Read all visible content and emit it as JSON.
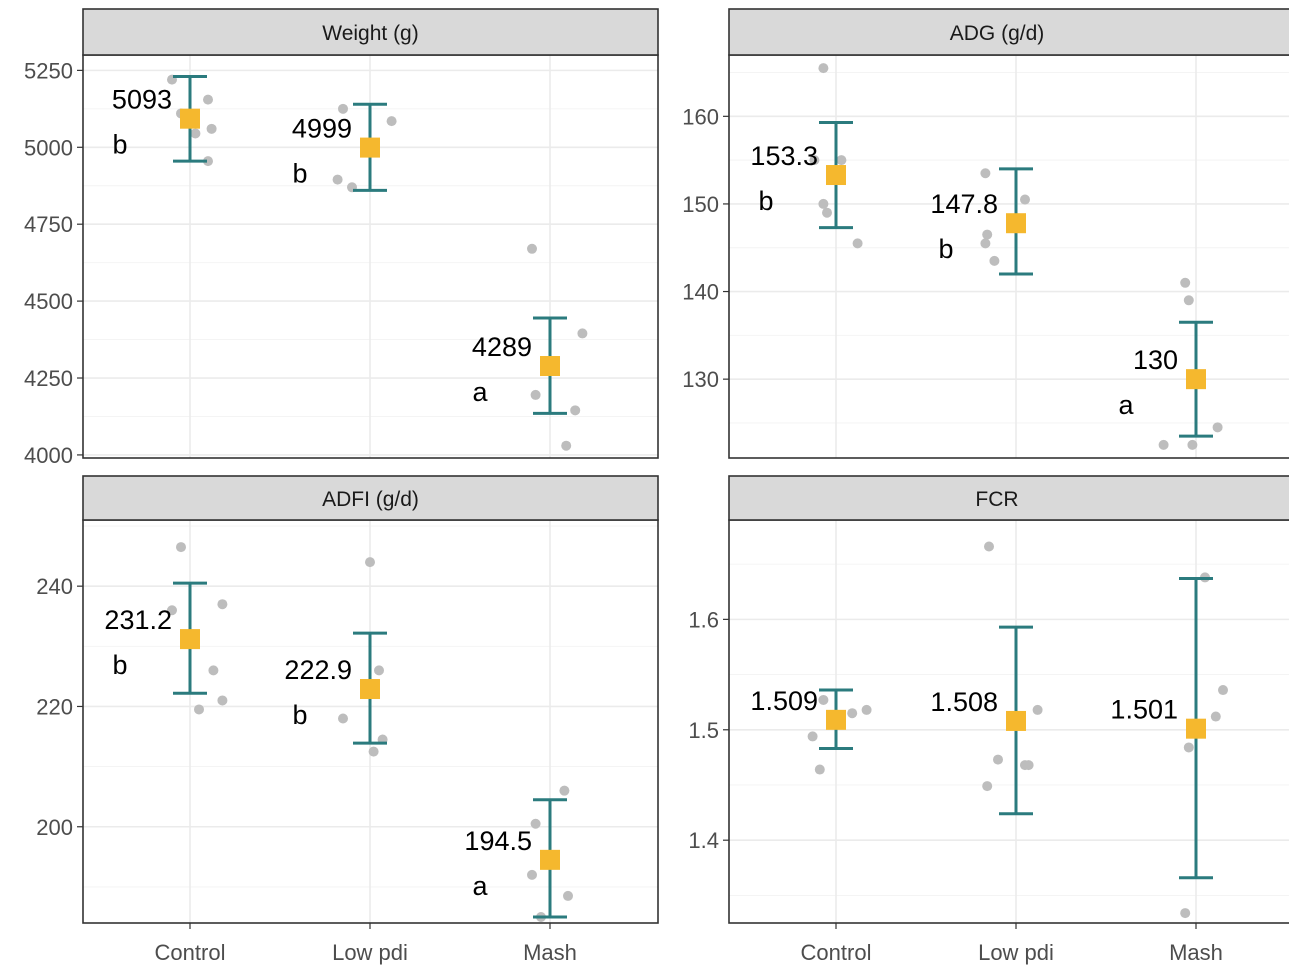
{
  "colors": {
    "mean_marker": "#f5b82e",
    "error_bar": "#2b7b7e",
    "raw_points": "#bdbdbd",
    "strip_fill": "#d9d9d9"
  },
  "x_categories": [
    "Control",
    "Low pdi",
    "Mash"
  ],
  "chart_data": [
    {
      "type": "scatter",
      "strip_title": "Weight (g)",
      "categories": [
        "Control",
        "Low pdi",
        "Mash"
      ],
      "ylim": [
        3990,
        5300
      ],
      "yticks": [
        4000,
        4250,
        4500,
        4750,
        5000,
        5250
      ],
      "ytick_labels": [
        "4000",
        "4250",
        "4500",
        "4750",
        "5000",
        "5250"
      ],
      "means": [
        5093,
        4999,
        4289
      ],
      "error_low": [
        4955,
        4860,
        4135
      ],
      "error_high": [
        5230,
        5140,
        4445
      ],
      "value_labels": [
        "5093",
        "4999",
        "4289"
      ],
      "letters": [
        "b",
        "b",
        "a"
      ],
      "points": [
        [
          [
            -0.1,
            5220
          ],
          [
            -0.05,
            5110
          ],
          [
            0.1,
            5155
          ],
          [
            0.12,
            5060
          ],
          [
            0.03,
            5045
          ],
          [
            0.1,
            4955
          ]
        ],
        [
          [
            -0.15,
            5125
          ],
          [
            0.12,
            5085
          ],
          [
            -0.18,
            4895
          ],
          [
            -0.1,
            4870
          ]
        ],
        [
          [
            -0.1,
            4670
          ],
          [
            0.18,
            4395
          ],
          [
            -0.08,
            4195
          ],
          [
            0.14,
            4145
          ],
          [
            0.09,
            4030
          ]
        ]
      ]
    },
    {
      "type": "scatter",
      "strip_title": "ADG (g/d)",
      "categories": [
        "Control",
        "Low pdi",
        "Mash"
      ],
      "ylim": [
        121,
        167
      ],
      "yticks": [
        130,
        140,
        150,
        160
      ],
      "ytick_labels": [
        "130",
        "140",
        "150",
        "160"
      ],
      "means": [
        153.3,
        147.8,
        130
      ],
      "error_low": [
        147.3,
        142.0,
        123.5
      ],
      "error_high": [
        159.3,
        154.0,
        136.5
      ],
      "value_labels": [
        "153.3",
        "147.8",
        "130"
      ],
      "letters": [
        "b",
        "b",
        "a"
      ],
      "points": [
        [
          [
            -0.07,
            165.5
          ],
          [
            -0.12,
            155
          ],
          [
            0.03,
            155
          ],
          [
            -0.07,
            150
          ],
          [
            -0.05,
            149
          ],
          [
            0.12,
            145.5
          ]
        ],
        [
          [
            -0.17,
            153.5
          ],
          [
            0.05,
            150.5
          ],
          [
            -0.16,
            146.5
          ],
          [
            -0.17,
            145.5
          ],
          [
            -0.12,
            143.5
          ]
        ],
        [
          [
            -0.06,
            141
          ],
          [
            -0.04,
            139
          ],
          [
            0.0,
            130
          ],
          [
            0.12,
            124.5
          ],
          [
            -0.18,
            122.5
          ],
          [
            -0.02,
            122.5
          ]
        ]
      ]
    },
    {
      "type": "scatter",
      "strip_title": "ADFI (g/d)",
      "categories": [
        "Control",
        "Low pdi",
        "Mash"
      ],
      "ylim": [
        184,
        251
      ],
      "yticks": [
        200,
        220,
        240
      ],
      "ytick_labels": [
        "200",
        "220",
        "240"
      ],
      "means": [
        231.2,
        222.9,
        194.5
      ],
      "error_low": [
        222.2,
        213.9,
        185.0
      ],
      "error_high": [
        240.5,
        232.2,
        204.5
      ],
      "value_labels": [
        "231.2",
        "222.9",
        "194.5"
      ],
      "letters": [
        "b",
        "b",
        "a"
      ],
      "points": [
        [
          [
            -0.05,
            246.5
          ],
          [
            0.18,
            237
          ],
          [
            -0.1,
            236
          ],
          [
            0.13,
            226
          ],
          [
            0.18,
            221
          ],
          [
            0.05,
            219.5
          ]
        ],
        [
          [
            0.0,
            244
          ],
          [
            0.05,
            226
          ],
          [
            -0.15,
            218
          ],
          [
            0.07,
            214.5
          ],
          [
            0.02,
            212.5
          ]
        ],
        [
          [
            0.08,
            206
          ],
          [
            -0.08,
            200.5
          ],
          [
            0.1,
            188.5
          ],
          [
            -0.1,
            192
          ],
          [
            -0.05,
            185
          ]
        ]
      ]
    },
    {
      "type": "scatter",
      "strip_title": "FCR",
      "categories": [
        "Control",
        "Low pdi",
        "Mash"
      ],
      "ylim": [
        1.325,
        1.69
      ],
      "yticks": [
        1.4,
        1.5,
        1.6
      ],
      "ytick_labels": [
        "1.4",
        "1.5",
        "1.6"
      ],
      "means": [
        1.509,
        1.508,
        1.501
      ],
      "error_low": [
        1.483,
        1.424,
        1.366
      ],
      "error_high": [
        1.536,
        1.593,
        1.637
      ],
      "value_labels": [
        "1.509",
        "1.508",
        "1.501"
      ],
      "letters": [
        "",
        "",
        ""
      ],
      "points": [
        [
          [
            -0.07,
            1.527
          ],
          [
            0.09,
            1.515
          ],
          [
            0.17,
            1.518
          ],
          [
            -0.13,
            1.494
          ],
          [
            -0.09,
            1.464
          ]
        ],
        [
          [
            -0.15,
            1.666
          ],
          [
            0.12,
            1.518
          ],
          [
            -0.1,
            1.473
          ],
          [
            0.05,
            1.468
          ],
          [
            0.07,
            1.468
          ],
          [
            -0.16,
            1.449
          ]
        ],
        [
          [
            0.05,
            1.638
          ],
          [
            0.15,
            1.536
          ],
          [
            0.11,
            1.512
          ],
          [
            -0.04,
            1.484
          ],
          [
            -0.06,
            1.334
          ]
        ]
      ]
    }
  ]
}
